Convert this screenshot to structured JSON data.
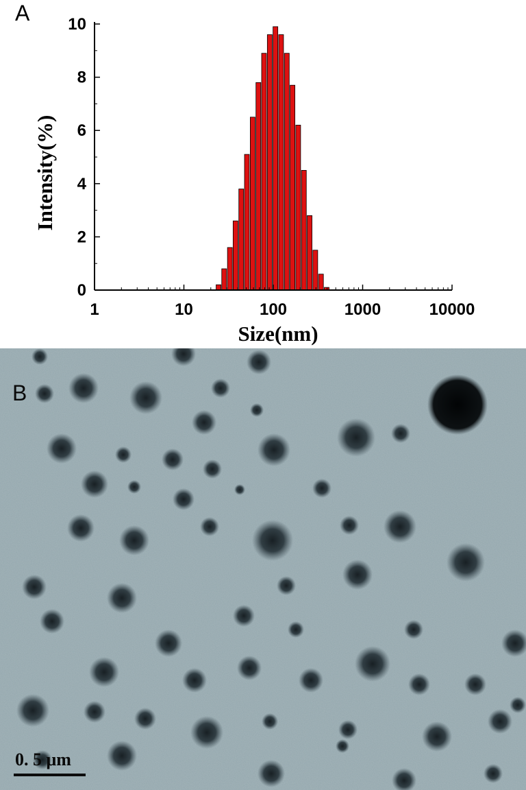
{
  "panel_a_label": "A",
  "panel_b_label": "B",
  "scale_bar_label": "0. 5  μm",
  "chart_data": {
    "type": "bar",
    "xlabel": "Size(nm)",
    "ylabel": "Intensity(%)",
    "xscale": "log",
    "xlim": [
      1,
      10000
    ],
    "ylim": [
      0,
      10
    ],
    "xticks": [
      "1",
      "10",
      "100",
      "1000",
      "10000"
    ],
    "yticks": [
      "0",
      "2",
      "4",
      "6",
      "8",
      "10"
    ],
    "bar_color": "#dd1111",
    "x": [
      24.4,
      28.2,
      32.7,
      37.8,
      43.8,
      50.7,
      58.8,
      68.1,
      78.8,
      91.3,
      105.7,
      122.4,
      141.8,
      164.2,
      190.1,
      220.2,
      255.0,
      295.3,
      342.0,
      396.1
    ],
    "values": [
      0.2,
      0.8,
      1.6,
      2.6,
      3.8,
      5.1,
      6.5,
      7.8,
      8.9,
      9.6,
      9.9,
      9.6,
      8.9,
      7.7,
      6.2,
      4.5,
      2.8,
      1.5,
      0.6,
      0.1
    ]
  }
}
